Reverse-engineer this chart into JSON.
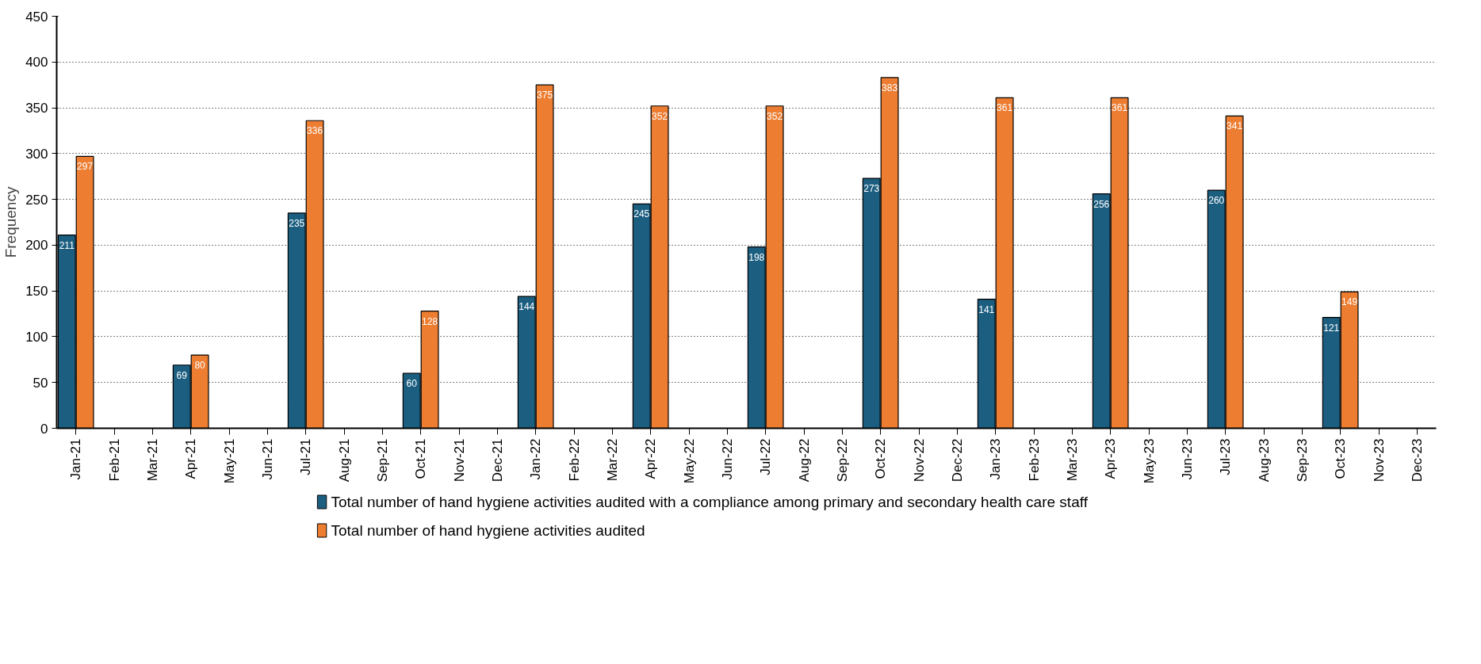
{
  "chart_data": {
    "type": "bar",
    "ylabel": "Frequency",
    "categories": [
      "Jan-21",
      "Feb-21",
      "Mar-21",
      "Apr-21",
      "May-21",
      "Jun-21",
      "Jul-21",
      "Aug-21",
      "Sep-21",
      "Oct-21",
      "Nov-21",
      "Dec-21",
      "Jan-22",
      "Feb-22",
      "Mar-22",
      "Apr-22",
      "May-22",
      "Jun-22",
      "Jul-22",
      "Aug-22",
      "Sep-22",
      "Oct-22",
      "Nov-22",
      "Dec-22",
      "Jan-23",
      "Feb-23",
      "Mar-23",
      "Apr-23",
      "May-23",
      "Jun-23",
      "Jul-23",
      "Aug-23",
      "Sep-23",
      "Oct-23",
      "Nov-23",
      "Dec-23"
    ],
    "series": [
      {
        "name": "Total number of hand hygiene activities audited with a compliance among primary and secondary health care staff",
        "color": "#1b5e80",
        "values": [
          211,
          null,
          null,
          69,
          null,
          null,
          235,
          null,
          null,
          60,
          null,
          null,
          144,
          null,
          null,
          245,
          null,
          null,
          198,
          null,
          null,
          273,
          null,
          null,
          141,
          null,
          null,
          256,
          null,
          null,
          260,
          null,
          null,
          121,
          null,
          null
        ]
      },
      {
        "name": "Total number of hand hygiene activities audited",
        "color": "#ed7d31",
        "values": [
          297,
          null,
          null,
          80,
          null,
          null,
          336,
          null,
          null,
          128,
          null,
          null,
          375,
          null,
          null,
          352,
          null,
          null,
          352,
          null,
          null,
          383,
          null,
          null,
          361,
          null,
          null,
          361,
          null,
          null,
          341,
          null,
          null,
          149,
          null,
          null
        ]
      }
    ],
    "ylim": [
      0,
      450
    ],
    "yticks": [
      0,
      50,
      100,
      150,
      200,
      250,
      300,
      350,
      400,
      450
    ],
    "grid": "y",
    "legend": "bottom",
    "data_labels": true
  }
}
